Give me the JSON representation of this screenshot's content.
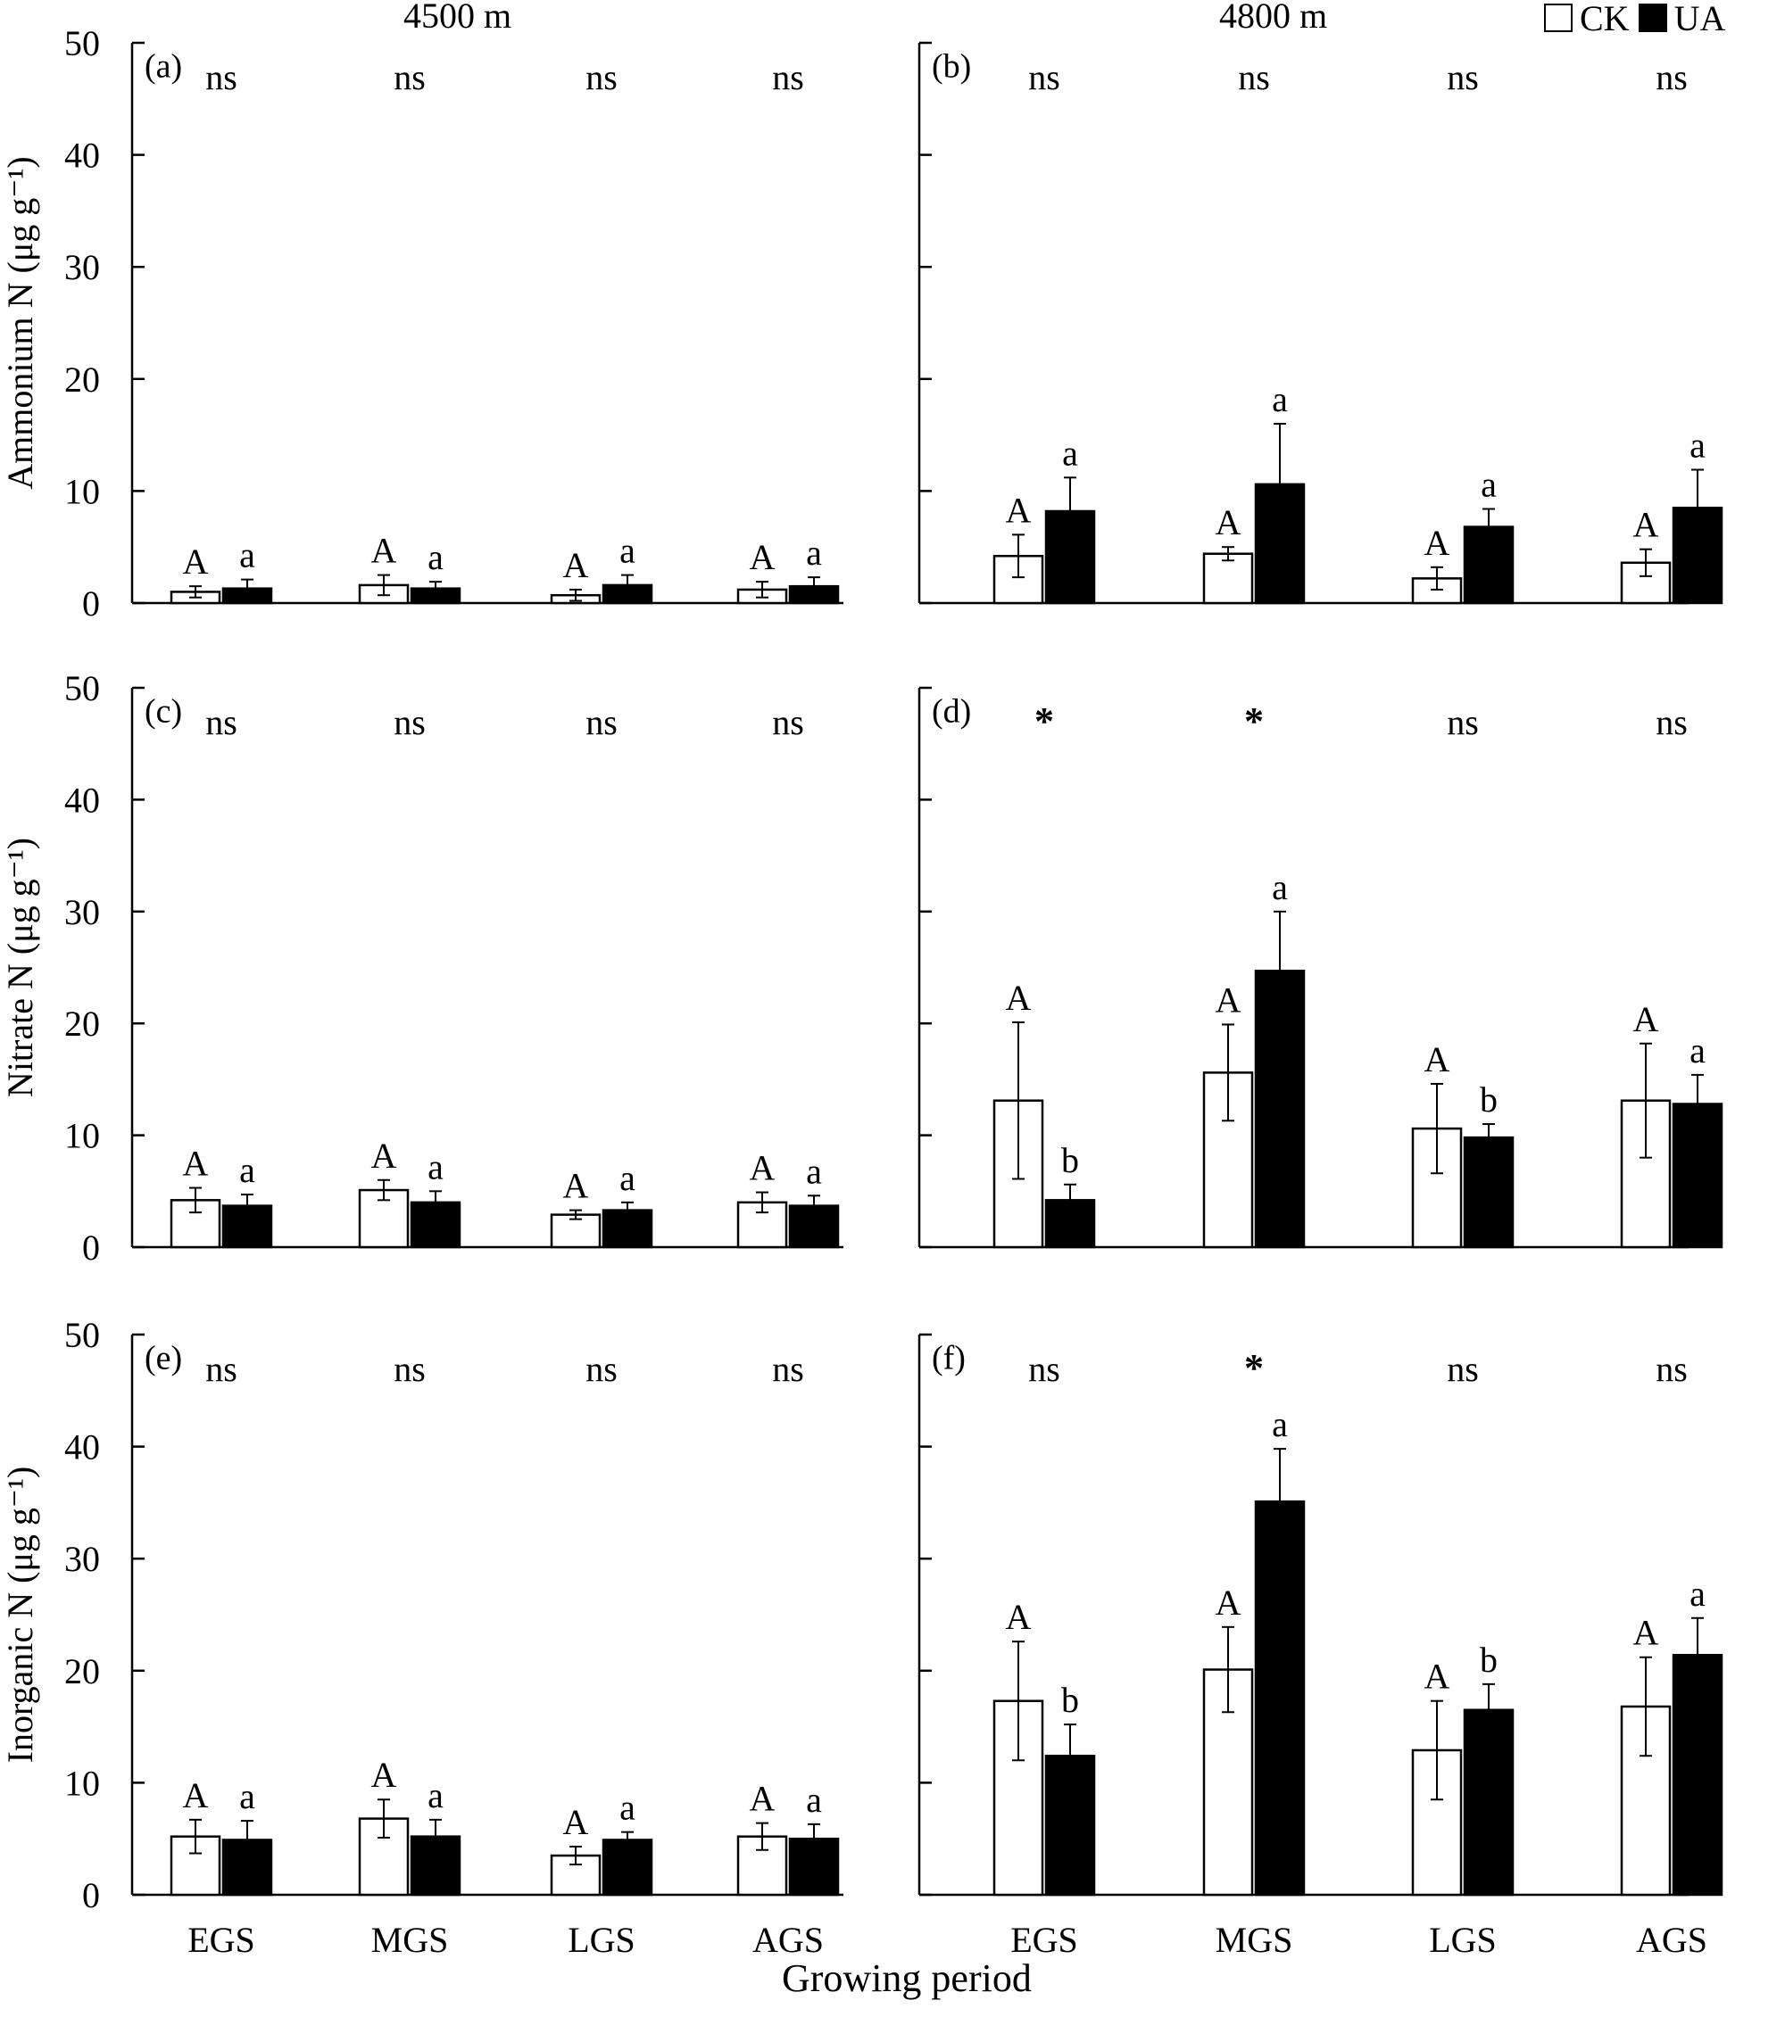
{
  "figure": {
    "column_titles": [
      "4500 m",
      "4800 m"
    ],
    "x_title": "Growing period",
    "legend": [
      {
        "label": "CK",
        "fill": "#ffffff"
      },
      {
        "label": "UA",
        "fill": "#000000"
      }
    ]
  },
  "chart_data": [
    {
      "type": "bar",
      "panel": "(a)",
      "ylabel": "Ammonium N (μg g⁻¹)",
      "ylim": [
        0,
        50
      ],
      "yticks": [
        0,
        10,
        20,
        30,
        40,
        50
      ],
      "categories": [
        "EGS",
        "MGS",
        "LGS",
        "AGS"
      ],
      "significance": [
        "ns",
        "ns",
        "ns",
        "ns"
      ],
      "series": [
        {
          "name": "CK",
          "values": [
            1.0,
            1.6,
            0.7,
            1.2
          ],
          "errors": [
            0.5,
            0.9,
            0.5,
            0.7
          ],
          "letters": [
            "A",
            "A",
            "A",
            "A"
          ]
        },
        {
          "name": "UA",
          "values": [
            1.3,
            1.3,
            1.6,
            1.5
          ],
          "errors": [
            0.8,
            0.6,
            0.9,
            0.8
          ],
          "letters": [
            "a",
            "a",
            "a",
            "a"
          ]
        }
      ]
    },
    {
      "type": "bar",
      "panel": "(b)",
      "ylabel": "",
      "ylim": [
        0,
        50
      ],
      "yticks": [
        0,
        10,
        20,
        30,
        40,
        50
      ],
      "categories": [
        "EGS",
        "MGS",
        "LGS",
        "AGS"
      ],
      "significance": [
        "ns",
        "ns",
        "ns",
        "ns"
      ],
      "series": [
        {
          "name": "CK",
          "values": [
            4.2,
            4.4,
            2.2,
            3.6
          ],
          "errors": [
            1.9,
            0.6,
            1.0,
            1.2
          ],
          "letters": [
            "A",
            "A",
            "A",
            "A"
          ]
        },
        {
          "name": "UA",
          "values": [
            8.2,
            10.6,
            6.8,
            8.5
          ],
          "errors": [
            3.0,
            5.4,
            1.6,
            3.4
          ],
          "letters": [
            "a",
            "a",
            "a",
            "a"
          ]
        }
      ]
    },
    {
      "type": "bar",
      "panel": "(c)",
      "ylabel": "Nitrate N (μg g⁻¹)",
      "ylim": [
        0,
        50
      ],
      "yticks": [
        0,
        10,
        20,
        30,
        40,
        50
      ],
      "categories": [
        "EGS",
        "MGS",
        "LGS",
        "AGS"
      ],
      "significance": [
        "ns",
        "ns",
        "ns",
        "ns"
      ],
      "series": [
        {
          "name": "CK",
          "values": [
            4.2,
            5.1,
            2.9,
            4.0
          ],
          "errors": [
            1.1,
            0.9,
            0.4,
            0.9
          ],
          "letters": [
            "A",
            "A",
            "A",
            "A"
          ]
        },
        {
          "name": "UA",
          "values": [
            3.7,
            4.0,
            3.3,
            3.7
          ],
          "errors": [
            1.0,
            1.0,
            0.7,
            0.9
          ],
          "letters": [
            "a",
            "a",
            "a",
            "a"
          ]
        }
      ]
    },
    {
      "type": "bar",
      "panel": "(d)",
      "ylabel": "",
      "ylim": [
        0,
        50
      ],
      "yticks": [
        0,
        10,
        20,
        30,
        40,
        50
      ],
      "categories": [
        "EGS",
        "MGS",
        "LGS",
        "AGS"
      ],
      "significance": [
        "*",
        "*",
        "ns",
        "ns"
      ],
      "series": [
        {
          "name": "CK",
          "values": [
            13.1,
            15.6,
            10.6,
            13.1
          ],
          "errors": [
            7.0,
            4.3,
            4.0,
            5.1
          ],
          "letters": [
            "A",
            "A",
            "A",
            "A"
          ]
        },
        {
          "name": "UA",
          "values": [
            4.2,
            24.7,
            9.8,
            12.8
          ],
          "errors": [
            1.4,
            5.3,
            1.2,
            2.6
          ],
          "letters": [
            "b",
            "a",
            "b",
            "a"
          ]
        }
      ]
    },
    {
      "type": "bar",
      "panel": "(e)",
      "ylabel": "Inorganic N (μg g⁻¹)",
      "ylim": [
        0,
        50
      ],
      "yticks": [
        0,
        10,
        20,
        30,
        40,
        50
      ],
      "categories": [
        "EGS",
        "MGS",
        "LGS",
        "AGS"
      ],
      "significance": [
        "ns",
        "ns",
        "ns",
        "ns"
      ],
      "series": [
        {
          "name": "CK",
          "values": [
            5.2,
            6.8,
            3.5,
            5.2
          ],
          "errors": [
            1.5,
            1.7,
            0.8,
            1.2
          ],
          "letters": [
            "A",
            "A",
            "A",
            "A"
          ]
        },
        {
          "name": "UA",
          "values": [
            4.9,
            5.2,
            4.9,
            5.0
          ],
          "errors": [
            1.7,
            1.5,
            0.7,
            1.3
          ],
          "letters": [
            "a",
            "a",
            "a",
            "a"
          ]
        }
      ]
    },
    {
      "type": "bar",
      "panel": "(f)",
      "ylabel": "",
      "ylim": [
        0,
        50
      ],
      "yticks": [
        0,
        10,
        20,
        30,
        40,
        50
      ],
      "categories": [
        "EGS",
        "MGS",
        "LGS",
        "AGS"
      ],
      "significance": [
        "ns",
        "*",
        "ns",
        "ns"
      ],
      "series": [
        {
          "name": "CK",
          "values": [
            17.3,
            20.1,
            12.9,
            16.8
          ],
          "errors": [
            5.3,
            3.8,
            4.4,
            4.4
          ],
          "letters": [
            "A",
            "A",
            "A",
            "A"
          ]
        },
        {
          "name": "UA",
          "values": [
            12.4,
            35.1,
            16.5,
            21.4
          ],
          "errors": [
            2.8,
            4.7,
            2.3,
            3.3
          ],
          "letters": [
            "b",
            "a",
            "b",
            "a"
          ]
        }
      ]
    }
  ]
}
